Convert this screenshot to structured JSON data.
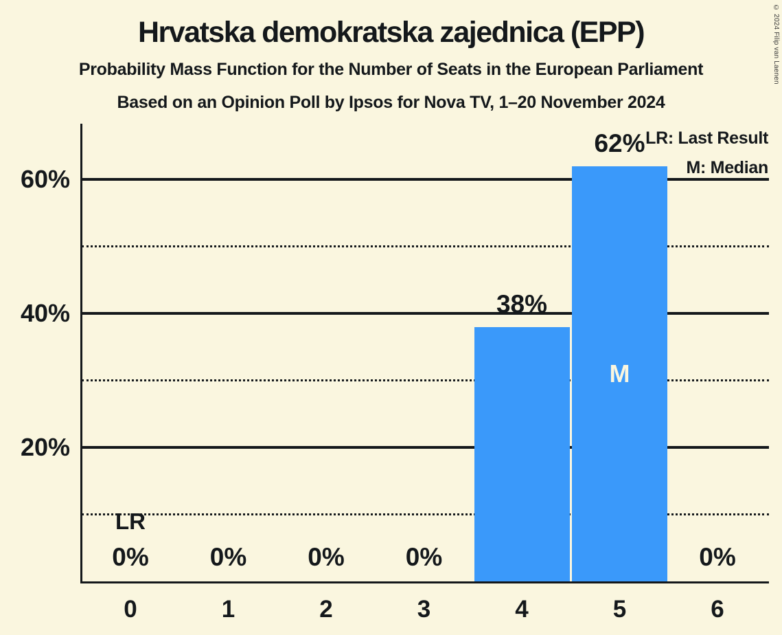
{
  "chart_data": {
    "type": "bar",
    "title": "Hrvatska demokratska zajednica (EPP)",
    "subtitle1": "Probability Mass Function for the Number of Seats in the European Parliament",
    "subtitle2": "Based on an Opinion Poll by Ipsos for Nova TV, 1–20 November 2024",
    "xlabel": "",
    "ylabel": "",
    "categories": [
      "0",
      "1",
      "2",
      "3",
      "4",
      "5",
      "6"
    ],
    "values": [
      0,
      0,
      0,
      0,
      38,
      62,
      0
    ],
    "value_labels": [
      "0%",
      "0%",
      "0%",
      "0%",
      "38%",
      "62%",
      "0%"
    ],
    "ylim": [
      0,
      68
    ],
    "y_major_gridlines_pct": [
      20,
      40,
      60
    ],
    "y_minor_gridlines_pct": [
      10,
      30,
      50
    ],
    "y_tick_labels": [
      "20%",
      "40%",
      "60%"
    ],
    "grid": "on",
    "legend_position": "top-right",
    "legend": {
      "lr": "LR: Last Result",
      "median": "M: Median"
    },
    "annotations": {
      "last_result_label": "LR",
      "last_result_seat_index": 0,
      "median_label": "M",
      "median_seat_index": 5
    },
    "colors": {
      "bar": "#3A99FA",
      "background": "#FAF6DF",
      "text": "#14181B",
      "median_letter": "#FAF6DF"
    }
  },
  "copyright": "© 2024 Filip van Laenen"
}
